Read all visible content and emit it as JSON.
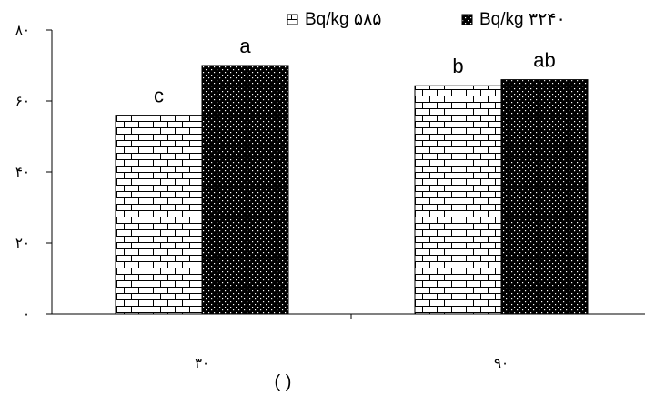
{
  "chart_data": {
    "type": "bar",
    "categories": [
      "۳۰",
      "۹۰"
    ],
    "series": [
      {
        "name": "Bq/kg ۵۸۵",
        "values": [
          56,
          64.3
        ],
        "letters": [
          "c",
          "b"
        ],
        "pattern": "brick",
        "color": "#000000"
      },
      {
        "name": "Bq/kg ۳۲۴۰",
        "values": [
          70,
          66
        ],
        "letters": [
          "a",
          "ab"
        ],
        "pattern": "dots",
        "color": "#000000"
      }
    ],
    "ylim": [
      0,
      80
    ],
    "yticks": [
      0,
      20,
      40,
      60,
      80
    ],
    "ytick_labels": [
      "۰",
      "۲۰",
      "۴۰",
      "۶۰",
      "۸۰"
    ],
    "xlabel": "(   )",
    "ylabel": "",
    "title": "",
    "legend_position": "top-right",
    "grid": false
  }
}
